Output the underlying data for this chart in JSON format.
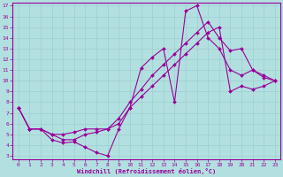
{
  "xlabel": "Windchill (Refroidissement éolien,°C)",
  "bg_color": "#b2e0e0",
  "grid_color": "#9ecece",
  "line_color": "#990099",
  "xlim": [
    -0.5,
    23.5
  ],
  "ylim": [
    2.7,
    17.3
  ],
  "xticks": [
    0,
    1,
    2,
    3,
    4,
    5,
    6,
    7,
    8,
    9,
    10,
    11,
    12,
    13,
    14,
    15,
    16,
    17,
    18,
    19,
    20,
    21,
    22,
    23
  ],
  "yticks": [
    3,
    4,
    5,
    6,
    7,
    8,
    9,
    10,
    11,
    12,
    13,
    14,
    15,
    16,
    17
  ],
  "line1_x": [
    0,
    1,
    2,
    3,
    4,
    5,
    6,
    7,
    8,
    9,
    10,
    11,
    12,
    13,
    14,
    15,
    16,
    17,
    18,
    19,
    20,
    21,
    22,
    23
  ],
  "line1_y": [
    7.5,
    5.5,
    5.5,
    4.5,
    4.2,
    4.3,
    3.8,
    3.3,
    3.0,
    5.5,
    7.5,
    11.2,
    12.2,
    13.0,
    8.0,
    16.5,
    17.0,
    14.0,
    13.0,
    11.0,
    10.5,
    11.0,
    10.3,
    10.0
  ],
  "line2_x": [
    0,
    1,
    2,
    3,
    4,
    5,
    6,
    7,
    8,
    9,
    10,
    11,
    12,
    13,
    14,
    15,
    16,
    17,
    18,
    19,
    20,
    21,
    22,
    23
  ],
  "line2_y": [
    7.5,
    5.5,
    5.5,
    5.0,
    5.0,
    5.2,
    5.5,
    5.5,
    5.5,
    6.0,
    7.5,
    8.5,
    9.5,
    10.5,
    11.5,
    12.5,
    13.5,
    14.5,
    15.0,
    9.0,
    9.5,
    9.2,
    9.5,
    10.0
  ],
  "line3_x": [
    0,
    1,
    2,
    3,
    4,
    5,
    6,
    7,
    8,
    9,
    10,
    11,
    12,
    13,
    14,
    15,
    16,
    17,
    18,
    19,
    20,
    21,
    22,
    23
  ],
  "line3_y": [
    7.5,
    5.5,
    5.5,
    5.0,
    4.5,
    4.5,
    5.0,
    5.2,
    5.5,
    6.5,
    8.0,
    9.2,
    10.5,
    11.5,
    12.5,
    13.5,
    14.5,
    15.5,
    14.0,
    12.8,
    13.0,
    11.0,
    10.5,
    10.0
  ]
}
